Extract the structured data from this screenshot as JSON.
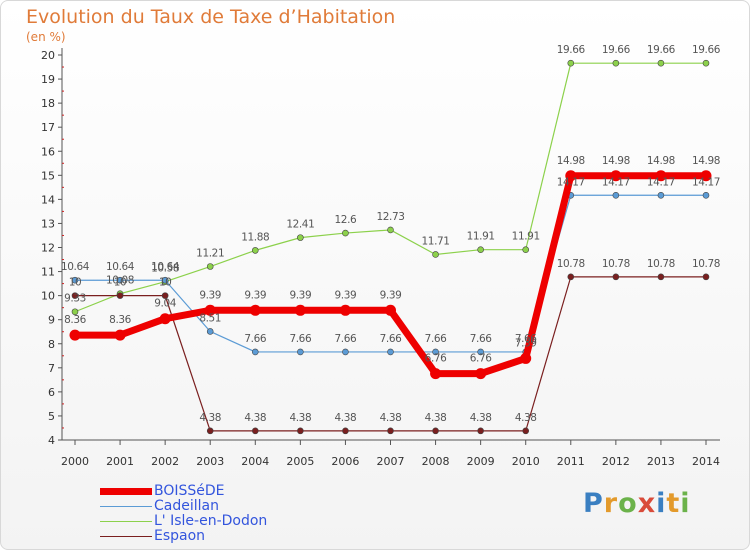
{
  "header": {
    "title": "Evolution du Taux de Taxe d’Habitation",
    "subtitle": "(en %)"
  },
  "chart_data": {
    "type": "line",
    "title": "Evolution du Taux de Taxe d’Habitation",
    "ylabel": "(en %)",
    "x": [
      2000,
      2001,
      2002,
      2003,
      2004,
      2005,
      2006,
      2007,
      2008,
      2009,
      2010,
      2011,
      2012,
      2013,
      2014
    ],
    "ylim": [
      4,
      20
    ],
    "yticks": [
      4,
      5,
      6,
      7,
      8,
      9,
      10,
      11,
      12,
      13,
      14,
      15,
      16,
      17,
      18,
      19,
      20
    ],
    "grid": false,
    "legend": "bottom-left",
    "series": [
      {
        "name": "BOISSéDE",
        "color": "#ee0000",
        "values": [
          8.36,
          8.36,
          9.04,
          9.39,
          9.39,
          9.39,
          9.39,
          9.39,
          6.76,
          6.76,
          7.39,
          14.98,
          14.98,
          14.98,
          14.98
        ],
        "labels": [
          "8.36",
          "8.36",
          "9.04",
          "9.39",
          "9.39",
          "9.39",
          "9.39",
          "9.39",
          "6.76",
          "6.76",
          "7.39",
          "14.98",
          "14.98",
          "14.98",
          "14.98"
        ]
      },
      {
        "name": "Cadeillan",
        "color": "#5b9bd5",
        "values": [
          10.64,
          10.64,
          10.64,
          8.51,
          7.66,
          7.66,
          7.66,
          7.66,
          7.66,
          7.66,
          7.66,
          14.17,
          14.17,
          14.17,
          14.17
        ],
        "labels": [
          "10.64",
          "10.64",
          "10.64",
          "8.51",
          "7.66",
          "7.66",
          "7.66",
          "7.66",
          "7.66",
          "7.66",
          "7.66",
          "14.17",
          "14.17",
          "14.17",
          "14.17"
        ]
      },
      {
        "name": "L' Isle-en-Dodon",
        "color": "#8cd14b",
        "values": [
          9.33,
          10.08,
          10.58,
          11.21,
          11.88,
          12.41,
          12.6,
          12.73,
          11.71,
          11.91,
          11.91,
          19.66,
          19.66,
          19.66,
          19.66
        ],
        "labels": [
          "9.33",
          "10.08",
          "10.58",
          "11.21",
          "11.88",
          "12.41",
          "12.6",
          "12.73",
          "11.71",
          "11.91",
          "11.91",
          "19.66",
          "19.66",
          "19.66",
          "19.66"
        ]
      },
      {
        "name": "Espaon",
        "color": "#7a1f1f",
        "values": [
          10.0,
          10.0,
          10.0,
          4.38,
          4.38,
          4.38,
          4.38,
          4.38,
          4.38,
          4.38,
          4.38,
          10.78,
          10.78,
          10.78,
          10.78
        ],
        "labels": [
          "10",
          "10",
          "10",
          "4.38",
          "4.38",
          "4.38",
          "4.38",
          "4.38",
          "4.38",
          "4.38",
          "4.38",
          "10.78",
          "10.78",
          "10.78",
          "10.78"
        ]
      }
    ]
  },
  "logo": {
    "letters": [
      {
        "char": "P",
        "color": "#3a7fc1"
      },
      {
        "char": "r",
        "color": "#e39a2b"
      },
      {
        "char": "o",
        "color": "#6bb24a"
      },
      {
        "char": "x",
        "color": "#d94b3a"
      },
      {
        "char": "i",
        "color": "#3a7fc1"
      },
      {
        "char": "t",
        "color": "#e39a2b"
      },
      {
        "char": "i",
        "color": "#6bb24a"
      }
    ]
  }
}
